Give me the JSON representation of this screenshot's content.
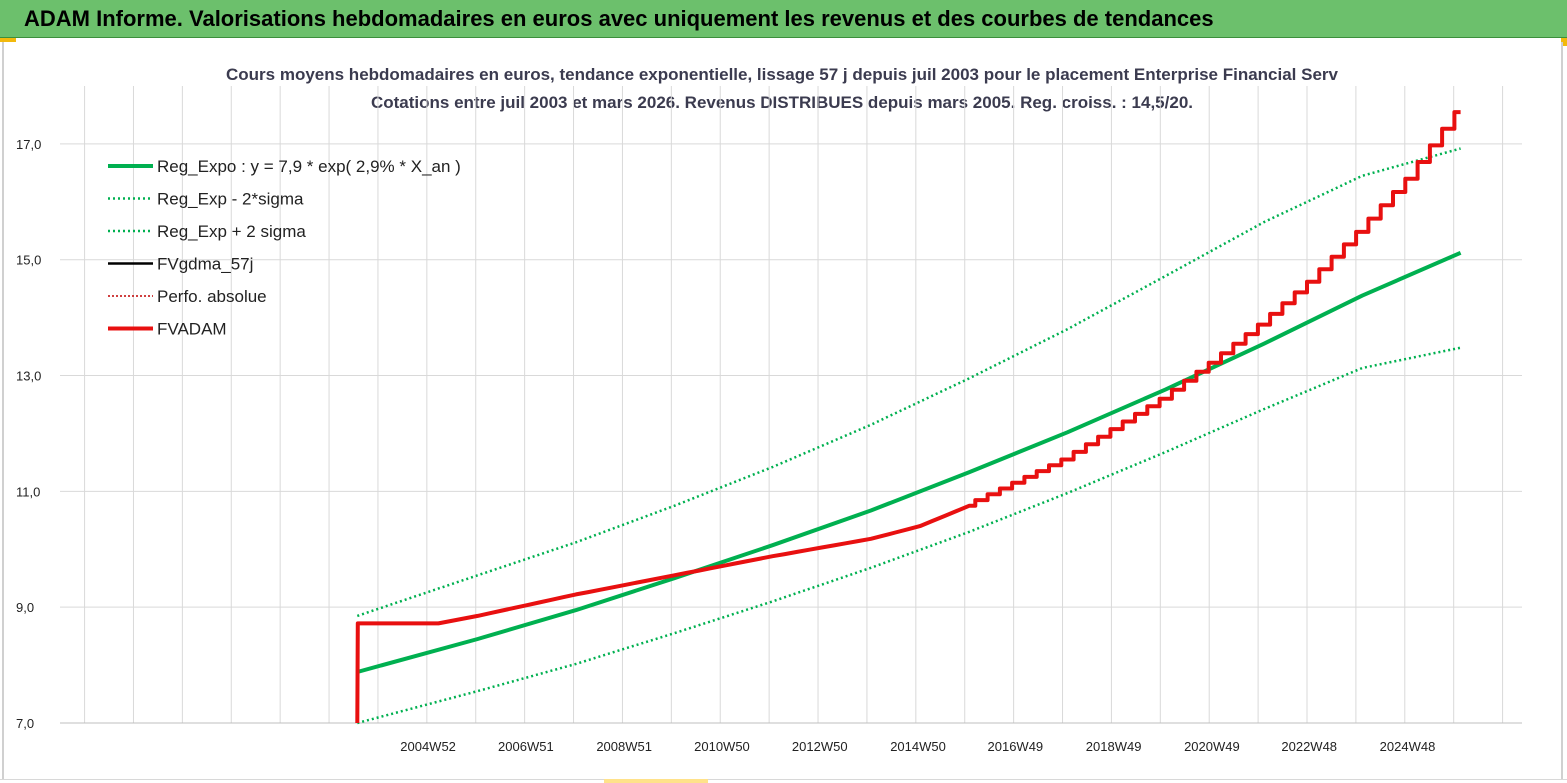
{
  "header": {
    "title": "ADAM Informe. Valorisations hebdomadaires en euros avec uniquement les revenus et des courbes de tendances"
  },
  "colors": {
    "banner": "#6cc06c",
    "trend": "#00b050",
    "fvadam": "#e81010",
    "fvgdma": "#000000",
    "perfo": "#c00000"
  },
  "chart_data": {
    "type": "line",
    "subtitle_line1": "Cours moyens hebdomadaires en euros, tendance exponentielle, lissage 57 j depuis juil 2003 pour le placement Enterprise Financial Serv",
    "subtitle_line2": "Cotations entre juil 2003 et mars 2026. Revenus DISTRIBUES depuis mars 2005. Reg. croiss. : 14,5/20.",
    "x_tick_labels": [
      "2004W52",
      "2006W51",
      "2008W51",
      "2010W50",
      "2012W50",
      "2014W50",
      "2016W49",
      "2018W49",
      "2020W49",
      "2022W48",
      "2024W48"
    ],
    "x_tick_years": [
      2004.99,
      2006.98,
      2008.98,
      2010.97,
      2012.96,
      2014.96,
      2016.94,
      2018.94,
      2020.94,
      2022.92,
      2024.92
    ],
    "x_range": [
      1997.5,
      2027.25
    ],
    "y_range": [
      7.0,
      18.0
    ],
    "y_ticks": [
      7.0,
      9.0,
      11.0,
      13.0,
      15.0,
      17.0
    ],
    "y_tick_labels": [
      "7,0",
      "9,0",
      "11,0",
      "13,0",
      "15,0",
      "17,0"
    ],
    "grid": true,
    "legend_position": "top-left",
    "legend": [
      {
        "key": "reg_expo",
        "label": "Reg_Expo : y = 7,9 * exp( 2,9% *  X_an )",
        "style": "solid-thick",
        "color": "#00b050"
      },
      {
        "key": "reg_minus",
        "label": "Reg_Exp - 2*sigma",
        "style": "dotted",
        "color": "#00b050"
      },
      {
        "key": "reg_plus",
        "label": "Reg_Exp + 2 sigma",
        "style": "dotted",
        "color": "#00b050"
      },
      {
        "key": "fvgdma",
        "label": "FVgdma_57j",
        "style": "solid",
        "color": "#000000"
      },
      {
        "key": "perfo",
        "label": "Perfo. absolue",
        "style": "dotted-thin",
        "color": "#c00000"
      },
      {
        "key": "fvadam",
        "label": "FVADAM",
        "style": "solid-thick",
        "color": "#e81010"
      }
    ],
    "series": [
      {
        "name": "Reg_Expo : y = 7,9 * exp( 2,9% *  X_an )",
        "x": [
          2003.55,
          2006,
          2008,
          2010,
          2012,
          2014,
          2016,
          2018,
          2020,
          2022,
          2024,
          2026.0
        ],
        "values": [
          7.88,
          8.45,
          8.95,
          9.5,
          10.07,
          10.67,
          11.33,
          12.02,
          12.76,
          13.55,
          14.38,
          15.12
        ]
      },
      {
        "name": "Reg_Exp - 2*sigma",
        "x": [
          2003.55,
          2006,
          2008,
          2010,
          2012,
          2014,
          2016,
          2018,
          2020,
          2022,
          2024,
          2026.0
        ],
        "values": [
          7.0,
          7.55,
          8.02,
          8.55,
          9.1,
          9.68,
          10.3,
          10.97,
          11.68,
          12.42,
          13.13,
          13.48
        ]
      },
      {
        "name": "Reg_Exp + 2 sigma",
        "x": [
          2003.55,
          2006,
          2008,
          2010,
          2012,
          2014,
          2016,
          2018,
          2020,
          2022,
          2024,
          2026.0
        ],
        "values": [
          8.85,
          9.55,
          10.12,
          10.75,
          11.42,
          12.15,
          12.95,
          13.8,
          14.72,
          15.65,
          16.45,
          16.92
        ]
      },
      {
        "name": "FVADAM",
        "x": [
          2003.55,
          2003.56,
          2005.2,
          2006,
          2008,
          2010,
          2012,
          2014,
          2015,
          2016,
          2018,
          2020,
          2021,
          2022,
          2023,
          2024,
          2025,
          2026.0
        ],
        "values": [
          7.0,
          8.72,
          8.72,
          8.85,
          9.22,
          9.55,
          9.88,
          10.18,
          10.4,
          10.75,
          11.55,
          12.6,
          13.22,
          13.88,
          14.62,
          15.48,
          16.4,
          17.55
        ]
      }
    ]
  }
}
